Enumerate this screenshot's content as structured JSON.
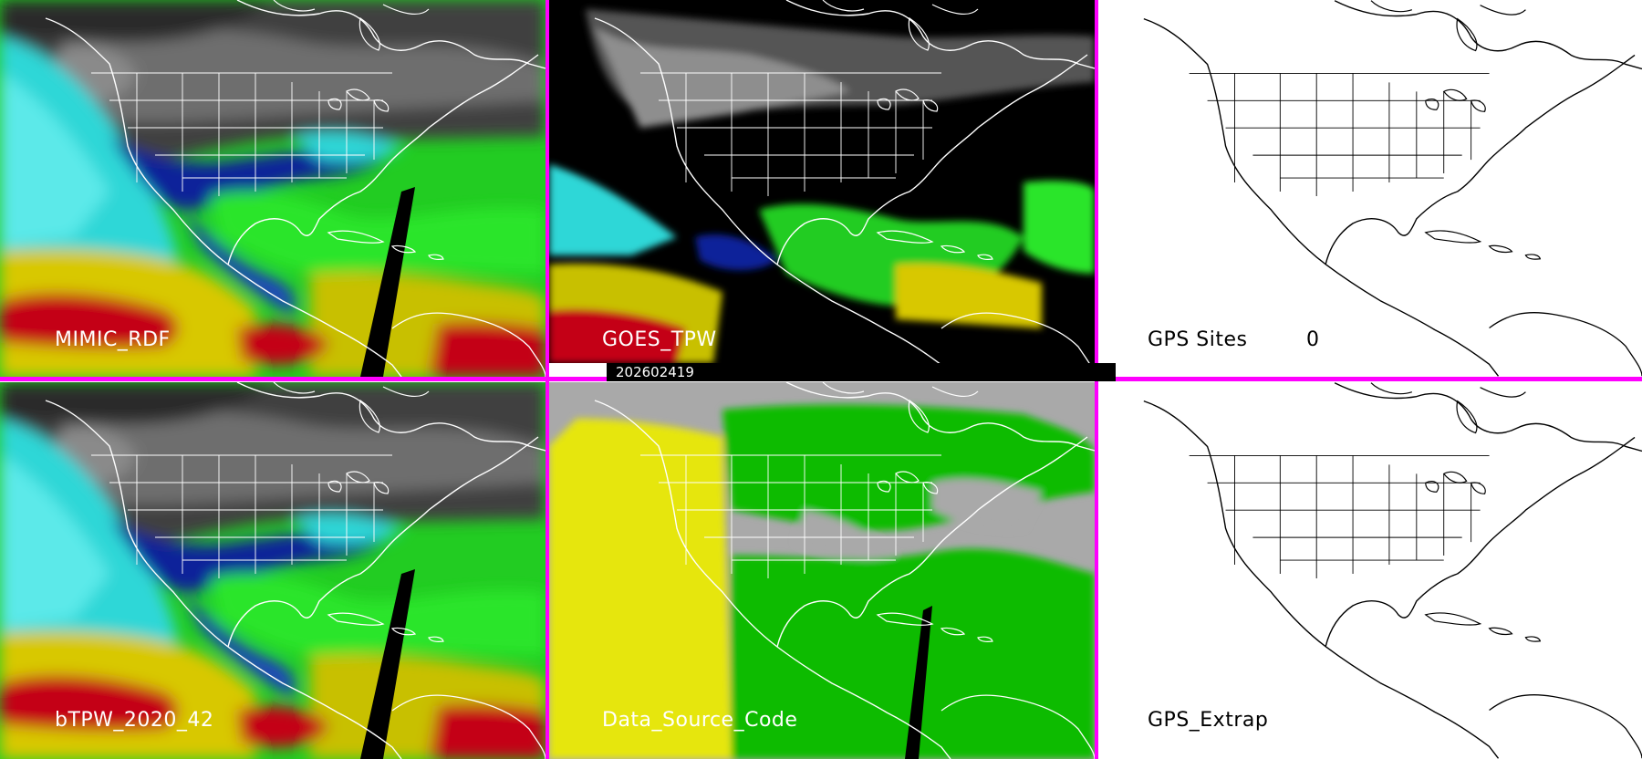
{
  "panels": {
    "top_left": {
      "label": "MIMIC_RDF",
      "style": "tpw-color"
    },
    "top_middle": {
      "label": "GOES_TPW",
      "style": "tpw-color-masked"
    },
    "top_right": {
      "label": "GPS Sites",
      "count": "0",
      "style": "outline"
    },
    "bottom_left": {
      "label": "bTPW_2020_42",
      "style": "tpw-color"
    },
    "bottom_middle": {
      "label": "Data_Source_Code",
      "style": "source-code"
    },
    "bottom_right": {
      "label": "GPS_Extrap",
      "style": "outline"
    }
  },
  "timestamp": "202602419",
  "colors": {
    "separator": "#ff00ff",
    "tpw_dry": "#3a3a3a",
    "tpw_cyan": "#2fd7d7",
    "tpw_blue": "#0a1a8c",
    "tpw_green": "#22cc22",
    "tpw_yellow": "#d8c800",
    "tpw_red": "#c40018",
    "source_gray": "#a9a9a9",
    "source_yellow": "#e6e60a",
    "source_green": "#11bb00"
  }
}
